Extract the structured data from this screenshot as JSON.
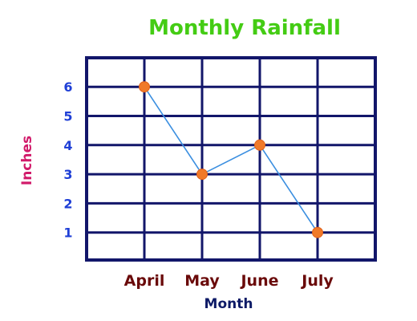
{
  "chart_data": {
    "type": "line",
    "title": "Monthly Rainfall",
    "xlabel": "Month",
    "ylabel": "Inches",
    "categories": [
      "April",
      "May",
      "June",
      "July"
    ],
    "y_ticks": [
      "1",
      "2",
      "3",
      "4",
      "5",
      "6"
    ],
    "ylim": [
      0,
      6
    ],
    "grid": true,
    "series": [
      {
        "values": [
          6,
          3,
          4,
          1
        ]
      }
    ],
    "colors": {
      "title": "#44cc14",
      "ylabel": "#d11a6a",
      "xlabel": "#0d1a66",
      "ytick": "#1f3fd6",
      "xtick": "#6a0a0a",
      "grid": "#12166a",
      "line": "#3b8fe0",
      "marker": "#f07a2a"
    }
  }
}
